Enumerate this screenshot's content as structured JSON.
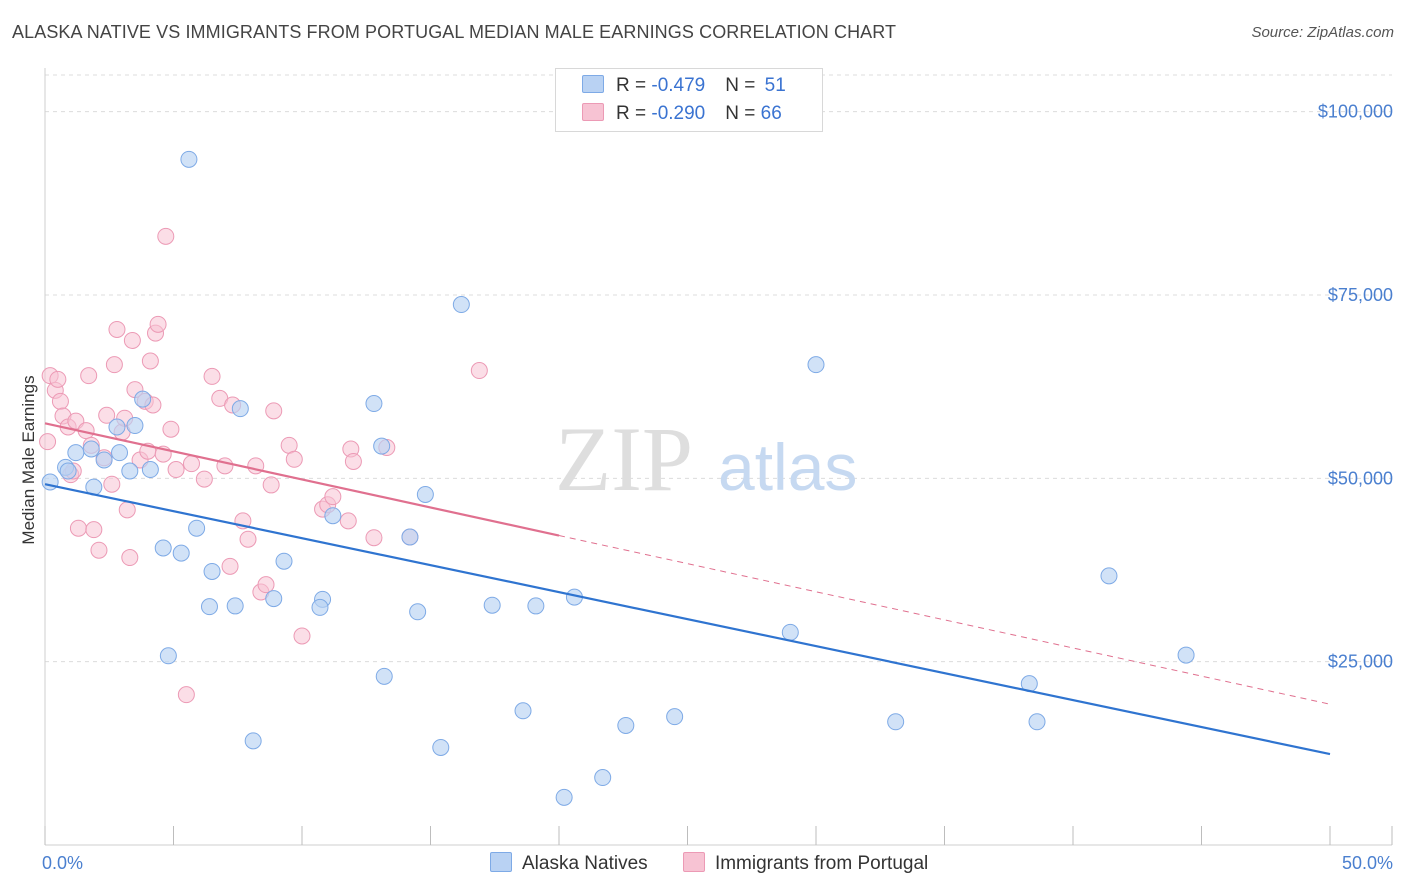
{
  "title": "ALASKA NATIVE VS IMMIGRANTS FROM PORTUGAL MEDIAN MALE EARNINGS CORRELATION CHART",
  "source": "Source: ZipAtlas.com",
  "watermark": {
    "zip": "ZIP",
    "atlas": "atlas"
  },
  "legend_top": {
    "rows": [
      {
        "r_label": "R = ",
        "r_value": "-0.479",
        "n_label": "N = ",
        "n_value": "51"
      },
      {
        "r_label": "R = ",
        "r_value": "-0.290",
        "n_label": "N = ",
        "n_value": "66"
      }
    ]
  },
  "legend_bottom": {
    "series1": "Alaska Natives",
    "series2": "Immigrants from Portugal"
  },
  "colors": {
    "blue_fill": "#b9d2f3",
    "blue_stroke": "#7eaae6",
    "blue_line": "#2f74d0",
    "pink_fill": "#f7c3d3",
    "pink_stroke": "#ec9ab5",
    "pink_line": "#e0708f",
    "grid": "#dcdcdc",
    "tick_text": "#4a7fcf"
  },
  "chart_data": {
    "type": "scatter",
    "title": "ALASKA NATIVE VS IMMIGRANTS FROM PORTUGAL MEDIAN MALE EARNINGS CORRELATION CHART",
    "xlabel": "",
    "ylabel": "Median Male Earnings",
    "xlim": [
      0,
      50
    ],
    "ylim": [
      0,
      105000
    ],
    "x_tick_labels": [
      "0.0%",
      "50.0%"
    ],
    "y_ticks": [
      25000,
      50000,
      75000,
      100000
    ],
    "y_tick_labels": [
      "$25,000",
      "$50,000",
      "$75,000",
      "$100,000"
    ],
    "grid": true,
    "legend_position": "top-center",
    "series": [
      {
        "name": "Alaska Natives",
        "r": -0.479,
        "n": 51,
        "trend": {
          "x": [
            0,
            50
          ],
          "y": [
            49200,
            12400
          ],
          "extrapolated_to": null
        },
        "points": [
          [
            0.2,
            49500
          ],
          [
            0.8,
            51500
          ],
          [
            0.9,
            51000
          ],
          [
            1.2,
            53500
          ],
          [
            1.8,
            54000
          ],
          [
            1.9,
            48800
          ],
          [
            2.3,
            52500
          ],
          [
            2.8,
            57000
          ],
          [
            2.9,
            53500
          ],
          [
            3.3,
            51000
          ],
          [
            3.5,
            57200
          ],
          [
            3.8,
            60800
          ],
          [
            4.1,
            51200
          ],
          [
            4.6,
            40500
          ],
          [
            4.8,
            25800
          ],
          [
            5.3,
            39800
          ],
          [
            5.6,
            93500
          ],
          [
            5.9,
            43200
          ],
          [
            6.4,
            32500
          ],
          [
            6.5,
            37300
          ],
          [
            7.4,
            32600
          ],
          [
            7.6,
            59500
          ],
          [
            8.1,
            14200
          ],
          [
            8.9,
            33600
          ],
          [
            9.3,
            38700
          ],
          [
            10.8,
            33500
          ],
          [
            10.7,
            32400
          ],
          [
            11.2,
            44900
          ],
          [
            12.8,
            60200
          ],
          [
            13.1,
            54400
          ],
          [
            13.2,
            23000
          ],
          [
            14.2,
            42000
          ],
          [
            14.5,
            31800
          ],
          [
            14.8,
            47800
          ],
          [
            15.4,
            13300
          ],
          [
            16.2,
            73700
          ],
          [
            17.4,
            32700
          ],
          [
            18.6,
            18300
          ],
          [
            19.1,
            32600
          ],
          [
            20.2,
            6500
          ],
          [
            20.6,
            33800
          ],
          [
            21.7,
            9200
          ],
          [
            22.6,
            16300
          ],
          [
            24.5,
            17500
          ],
          [
            29.0,
            29000
          ],
          [
            30.0,
            65500
          ],
          [
            33.1,
            16800
          ],
          [
            38.3,
            22000
          ],
          [
            38.6,
            16800
          ],
          [
            41.4,
            36700
          ],
          [
            44.4,
            25900
          ]
        ]
      },
      {
        "name": "Immigrants from Portugal",
        "r": -0.29,
        "n": 66,
        "trend": {
          "x": [
            0,
            20
          ],
          "y": [
            57500,
            42200
          ],
          "extrapolated_to": {
            "x": 50,
            "y": 19200
          }
        },
        "points": [
          [
            0.1,
            55000
          ],
          [
            0.2,
            64000
          ],
          [
            0.4,
            62000
          ],
          [
            0.5,
            63500
          ],
          [
            0.6,
            60500
          ],
          [
            0.7,
            58500
          ],
          [
            0.9,
            57000
          ],
          [
            1.0,
            50500
          ],
          [
            1.1,
            51000
          ],
          [
            1.2,
            57800
          ],
          [
            1.3,
            43200
          ],
          [
            1.6,
            56500
          ],
          [
            1.7,
            64000
          ],
          [
            1.8,
            54500
          ],
          [
            1.9,
            43000
          ],
          [
            2.1,
            40200
          ],
          [
            2.3,
            52800
          ],
          [
            2.4,
            58600
          ],
          [
            2.6,
            49200
          ],
          [
            2.7,
            65500
          ],
          [
            2.8,
            70300
          ],
          [
            3.0,
            56300
          ],
          [
            3.1,
            58200
          ],
          [
            3.2,
            45700
          ],
          [
            3.3,
            39200
          ],
          [
            3.4,
            68800
          ],
          [
            3.5,
            62100
          ],
          [
            3.7,
            52500
          ],
          [
            3.9,
            60500
          ],
          [
            4.0,
            53700
          ],
          [
            4.1,
            66000
          ],
          [
            4.2,
            60000
          ],
          [
            4.3,
            69800
          ],
          [
            4.4,
            71000
          ],
          [
            4.6,
            53300
          ],
          [
            4.7,
            83000
          ],
          [
            4.9,
            56700
          ],
          [
            5.1,
            51200
          ],
          [
            5.5,
            20500
          ],
          [
            5.7,
            52000
          ],
          [
            6.2,
            49900
          ],
          [
            6.5,
            63900
          ],
          [
            6.8,
            60900
          ],
          [
            7.0,
            51700
          ],
          [
            7.2,
            38000
          ],
          [
            7.3,
            60000
          ],
          [
            7.7,
            44200
          ],
          [
            7.9,
            41700
          ],
          [
            8.2,
            51700
          ],
          [
            8.4,
            34500
          ],
          [
            8.6,
            35500
          ],
          [
            8.8,
            49100
          ],
          [
            8.9,
            59200
          ],
          [
            9.5,
            54500
          ],
          [
            9.7,
            52600
          ],
          [
            10.0,
            28500
          ],
          [
            10.8,
            45800
          ],
          [
            11.0,
            46400
          ],
          [
            11.2,
            47500
          ],
          [
            11.8,
            44200
          ],
          [
            11.9,
            54000
          ],
          [
            12.0,
            52300
          ],
          [
            12.8,
            41900
          ],
          [
            13.3,
            54200
          ],
          [
            14.2,
            42000
          ],
          [
            16.9,
            64700
          ]
        ]
      }
    ]
  }
}
